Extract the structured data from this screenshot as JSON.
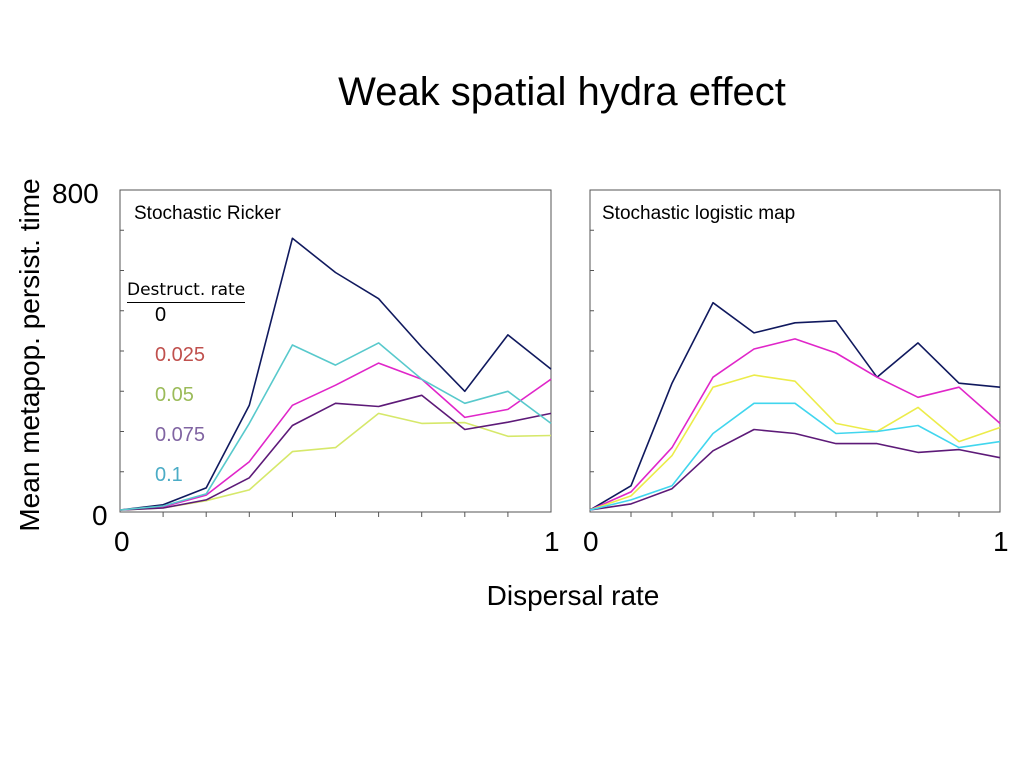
{
  "title": "Weak spatial hydra effect",
  "ylabel": "Mean metapop. persist. time",
  "xlabel": "Dispersal rate",
  "y_ticks": {
    "top": "800",
    "bottom": "0"
  },
  "legend": {
    "title": "Destruct. rate",
    "items": [
      {
        "label": "0",
        "color": "#000000"
      },
      {
        "label": "0.025",
        "color": "#c0504d"
      },
      {
        "label": "0.05",
        "color": "#9bbb59"
      },
      {
        "label": "0.075",
        "color": "#8064a2"
      },
      {
        "label": "0.1",
        "color": "#4bacc6"
      }
    ]
  },
  "chart_data": [
    {
      "type": "line",
      "panel_label": "Stochastic Ricker",
      "x_tick_labels": [
        "0",
        "1"
      ],
      "xlim": [
        0,
        1
      ],
      "ylim": [
        0,
        800
      ],
      "x": [
        0,
        0.1,
        0.2,
        0.3,
        0.4,
        0.5,
        0.6,
        0.7,
        0.8,
        0.9,
        1.0
      ],
      "series": [
        {
          "name": "0",
          "color": "#10195e",
          "values": [
            5,
            18,
            60,
            265,
            680,
            595,
            530,
            410,
            300,
            440,
            355
          ]
        },
        {
          "name": "0.025",
          "color": "#e026c9",
          "values": [
            5,
            13,
            42,
            125,
            265,
            315,
            370,
            330,
            235,
            255,
            330
          ]
        },
        {
          "name": "0.05",
          "color": "#d6e86a",
          "values": [
            5,
            10,
            28,
            55,
            150,
            160,
            245,
            220,
            222,
            188,
            190
          ]
        },
        {
          "name": "0.075",
          "color": "#5d1a78",
          "values": [
            5,
            10,
            30,
            85,
            215,
            270,
            262,
            290,
            205,
            223,
            245
          ]
        },
        {
          "name": "0.1",
          "color": "#58c9cc",
          "values": [
            5,
            15,
            45,
            220,
            415,
            365,
            420,
            330,
            270,
            300,
            220
          ]
        }
      ]
    },
    {
      "type": "line",
      "panel_label": "Stochastic logistic map",
      "x_tick_labels": [
        "0",
        "1"
      ],
      "xlim": [
        0,
        1
      ],
      "ylim": [
        0,
        800
      ],
      "x": [
        0,
        0.1,
        0.2,
        0.3,
        0.4,
        0.5,
        0.6,
        0.7,
        0.8,
        0.9,
        1.0
      ],
      "series": [
        {
          "name": "0",
          "color": "#10195e",
          "values": [
            5,
            65,
            320,
            520,
            445,
            470,
            475,
            335,
            420,
            320,
            310
          ]
        },
        {
          "name": "0.025",
          "color": "#e026c9",
          "values": [
            5,
            50,
            160,
            335,
            405,
            430,
            395,
            335,
            285,
            310,
            220
          ]
        },
        {
          "name": "0.05",
          "color": "#ecec4a",
          "values": [
            5,
            40,
            140,
            310,
            340,
            325,
            220,
            200,
            260,
            175,
            210
          ]
        },
        {
          "name": "0.075",
          "color": "#5d1a78",
          "values": [
            5,
            20,
            58,
            152,
            205,
            195,
            170,
            170,
            148,
            155,
            135
          ]
        },
        {
          "name": "0.1",
          "color": "#41d6ee",
          "values": [
            5,
            30,
            65,
            195,
            270,
            270,
            195,
            200,
            215,
            160,
            175
          ]
        }
      ]
    }
  ]
}
